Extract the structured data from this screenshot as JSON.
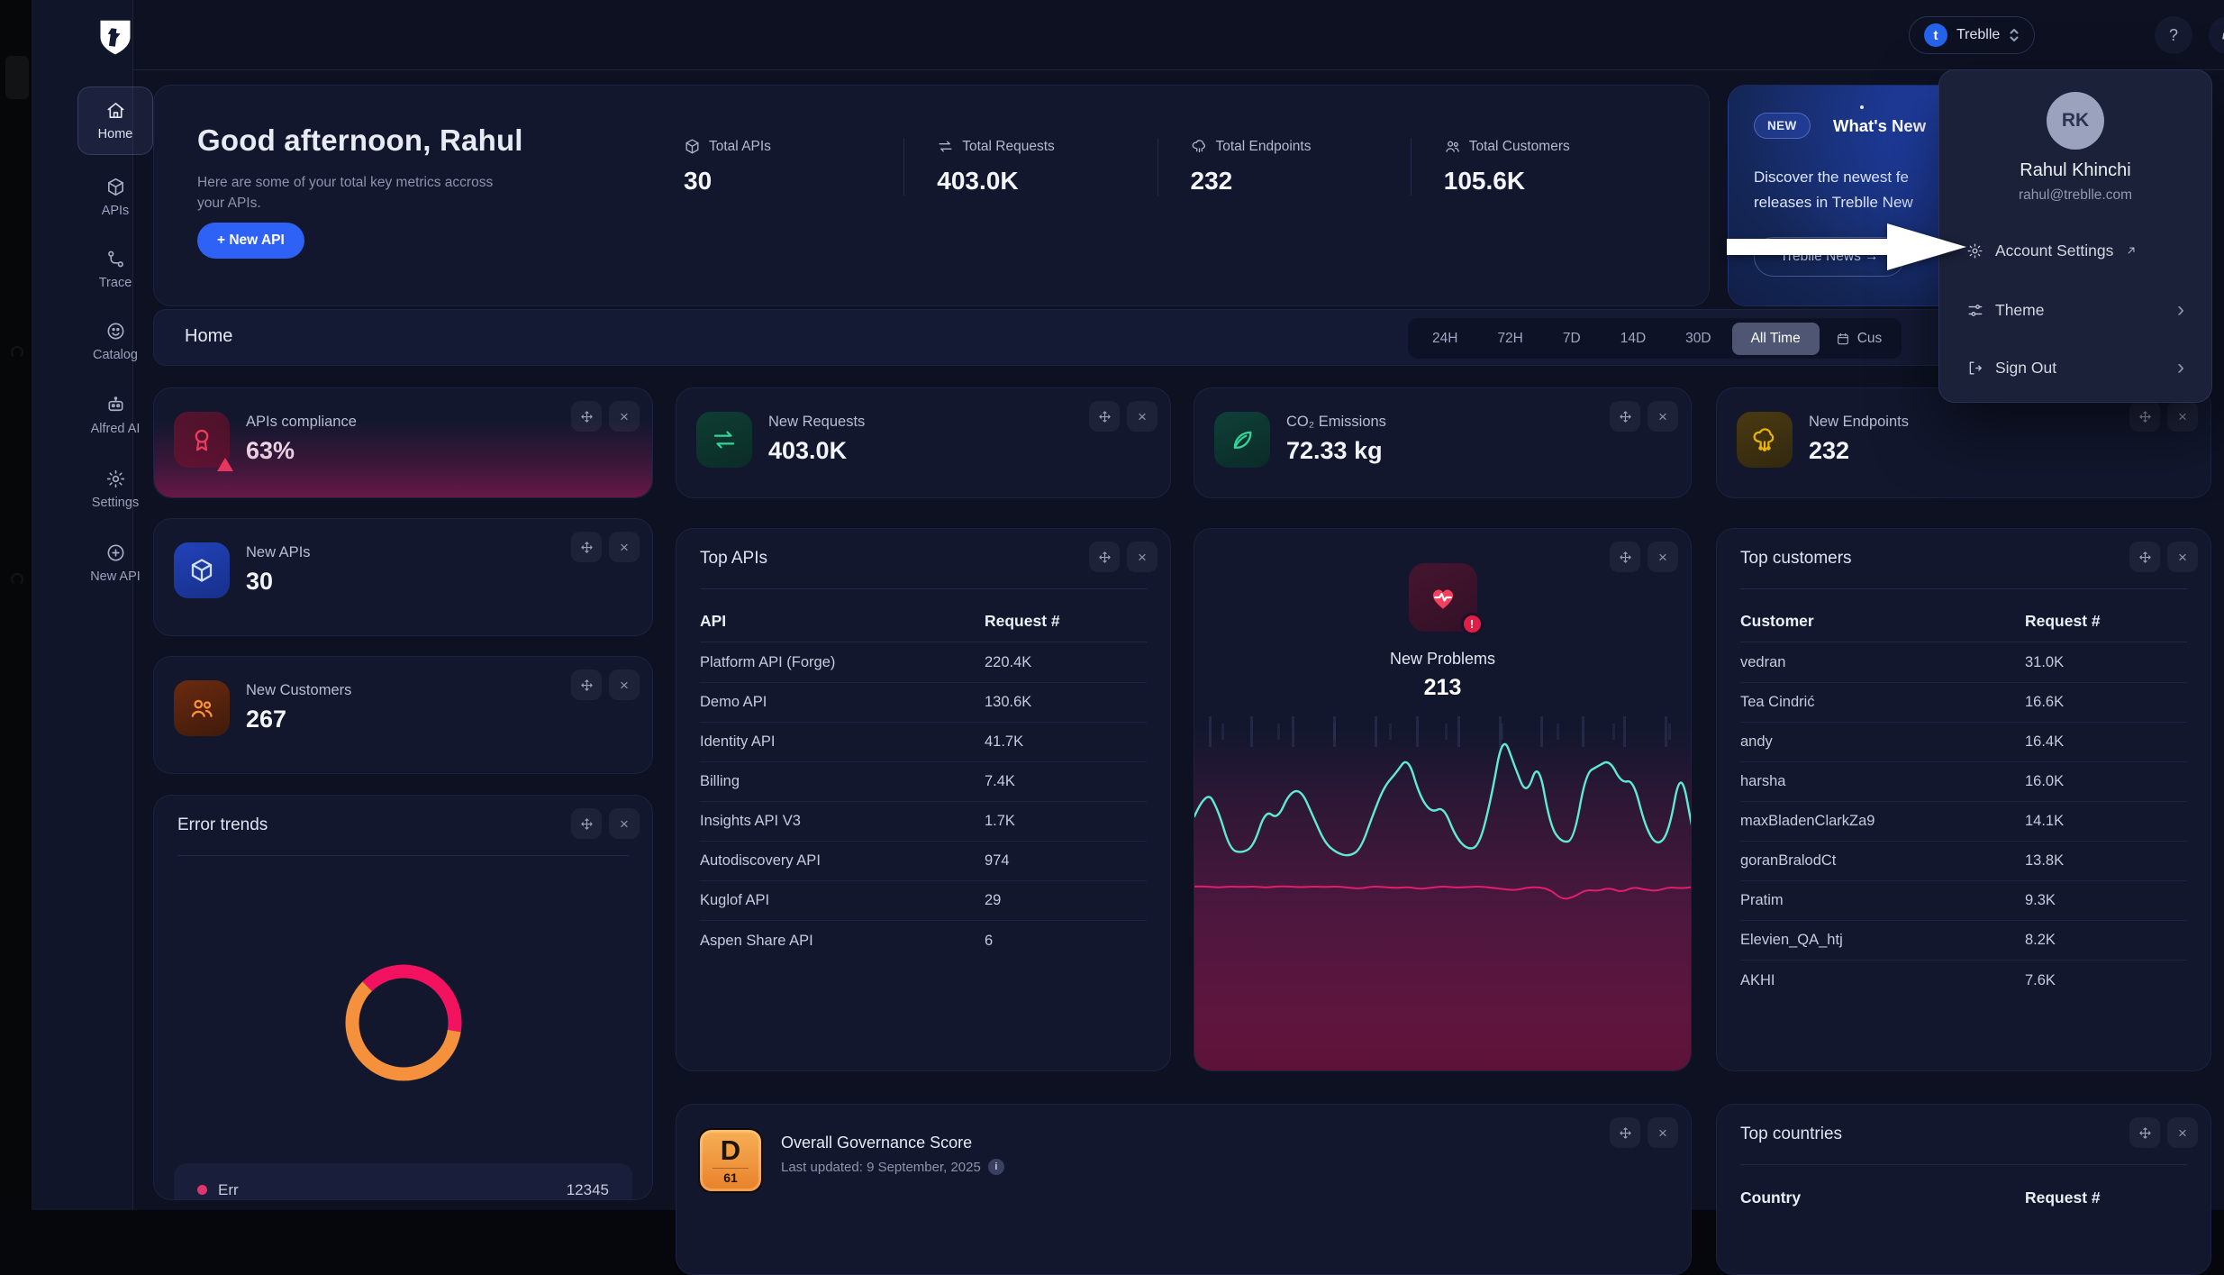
{
  "sidebar": {
    "items": [
      {
        "label": "Home",
        "active": true
      },
      {
        "label": "APIs"
      },
      {
        "label": "Trace"
      },
      {
        "label": "Catalog"
      },
      {
        "label": "Alfred AI"
      },
      {
        "label": "Settings"
      },
      {
        "label": "New API"
      }
    ]
  },
  "topbar": {
    "workspace": "Treblle",
    "workspace_initial": "t",
    "help": "?",
    "avatar_initials": "RK"
  },
  "greeting": {
    "title": "Good afternoon, Rahul",
    "subtitle": "Here are some of your total key metrics accross your APIs.",
    "new_api_button": "+ New API",
    "metrics": [
      {
        "label": "Total APIs",
        "value": "30"
      },
      {
        "label": "Total Requests",
        "value": "403.0K"
      },
      {
        "label": "Total Endpoints",
        "value": "232"
      },
      {
        "label": "Total Customers",
        "value": "105.6K"
      }
    ]
  },
  "whats_new": {
    "badge": "NEW",
    "title": "What's New",
    "desc_line1": "Discover the newest fe",
    "desc_line2": "releases in Treblle New",
    "button": "Treblle News →"
  },
  "home_section": {
    "title": "Home",
    "filters": [
      "24H",
      "72H",
      "7D",
      "14D",
      "30D",
      "All Time"
    ],
    "selected_filter": "All Time",
    "custom_label": "Cus"
  },
  "stats": {
    "compliance": {
      "title": "APIs compliance",
      "value": "63%"
    },
    "requests": {
      "title": "New Requests",
      "value": "403.0K"
    },
    "co2": {
      "title": "CO₂ Emissions",
      "value": "72.33 kg"
    },
    "endpoints": {
      "title": "New Endpoints",
      "value": "232"
    },
    "new_apis": {
      "title": "New APIs",
      "value": "30"
    },
    "new_customers": {
      "title": "New Customers",
      "value": "267"
    }
  },
  "top_apis": {
    "title": "Top APIs",
    "col1": "API",
    "col2": "Request #",
    "rows": [
      {
        "name": "Platform API (Forge)",
        "value": "220.4K"
      },
      {
        "name": "Demo API",
        "value": "130.6K"
      },
      {
        "name": "Identity API",
        "value": "41.7K"
      },
      {
        "name": "Billing",
        "value": "7.4K"
      },
      {
        "name": "Insights API V3",
        "value": "1.7K"
      },
      {
        "name": "Autodiscovery API",
        "value": "974"
      },
      {
        "name": "Kuglof API",
        "value": "29"
      },
      {
        "name": "Aspen Share API",
        "value": "6"
      }
    ]
  },
  "new_problems": {
    "label": "New Problems",
    "value": "213",
    "badge": "!"
  },
  "top_customers": {
    "title": "Top customers",
    "col1": "Customer",
    "col2": "Request #",
    "rows": [
      {
        "name": "vedran",
        "value": "31.0K"
      },
      {
        "name": "Tea Cindrić",
        "value": "16.6K"
      },
      {
        "name": "andy",
        "value": "16.4K"
      },
      {
        "name": "harsha",
        "value": "16.0K"
      },
      {
        "name": "maxBladenClarkZa9",
        "value": "14.1K"
      },
      {
        "name": "goranBralodCt",
        "value": "13.8K"
      },
      {
        "name": "Pratim",
        "value": "9.3K"
      },
      {
        "name": "Elevien_QA_htj",
        "value": "8.2K"
      },
      {
        "name": "AKHI",
        "value": "7.6K"
      }
    ]
  },
  "error_trends": {
    "title": "Error trends",
    "legend_label": "Err",
    "legend_value": "12345"
  },
  "governance": {
    "grade": "D",
    "score": "61",
    "title": "Overall Governance Score",
    "updated": "Last updated: 9 September, 2025",
    "info": "i"
  },
  "top_countries": {
    "title": "Top countries",
    "col1": "Country",
    "col2": "Request #"
  },
  "user_menu": {
    "initials": "RK",
    "name": "Rahul Khinchi",
    "email": "rahul@treblle.com",
    "account_settings": "Account Settings",
    "theme": "Theme",
    "sign_out": "Sign Out"
  },
  "chart_data": [
    {
      "id": "new-problems-trend",
      "type": "line",
      "title": "New Problems",
      "headline_value": 213,
      "x_axis": "time (no visible tick labels)",
      "ylim": [
        0,
        100
      ],
      "note": "values estimated 0-100 from pixel positions; no axis labels shown in UI",
      "series": [
        {
          "name": "problems",
          "color": "#5eead4",
          "values": [
            70,
            78,
            72,
            60,
            59,
            61,
            72,
            69,
            77,
            78,
            70,
            62,
            59,
            58,
            60,
            70,
            79,
            83,
            88,
            76,
            71,
            73,
            64,
            60,
            61,
            75,
            95,
            85,
            76,
            87,
            67,
            62,
            63,
            83,
            85,
            87,
            80,
            81,
            67,
            61,
            65,
            85,
            66
          ]
        },
        {
          "name": "baseline",
          "color": "#e11d6e",
          "values": [
            49,
            49,
            48.6,
            49,
            48.8,
            49,
            48.6,
            49,
            49,
            48.7,
            49,
            48.8,
            49,
            48.6,
            48.3,
            49,
            48.8,
            48.5,
            48.8,
            48.2,
            48.6,
            49,
            48.6,
            48.8,
            49,
            48.6,
            48.2,
            47.8,
            48.6,
            48.8,
            48,
            45,
            45.8,
            48,
            47.6,
            48.6,
            47.2,
            48.8,
            48,
            47.6,
            48.8,
            48.4,
            48.8
          ]
        }
      ],
      "legend_position": "none",
      "grid": false
    },
    {
      "id": "error-trends-donut",
      "type": "donut",
      "title": "Error trends",
      "start_angle_deg": 225,
      "slices": [
        {
          "label": "Err (legend text clipped)",
          "value": 40,
          "color": "#f31260"
        },
        {
          "label": "unlabeled",
          "value": 60,
          "color": "#f5913d"
        }
      ],
      "legend": [
        {
          "label": "Err",
          "value": "12345"
        }
      ],
      "note": "slice percentages estimated from arc lengths; legend row clipped at viewport bottom"
    }
  ]
}
